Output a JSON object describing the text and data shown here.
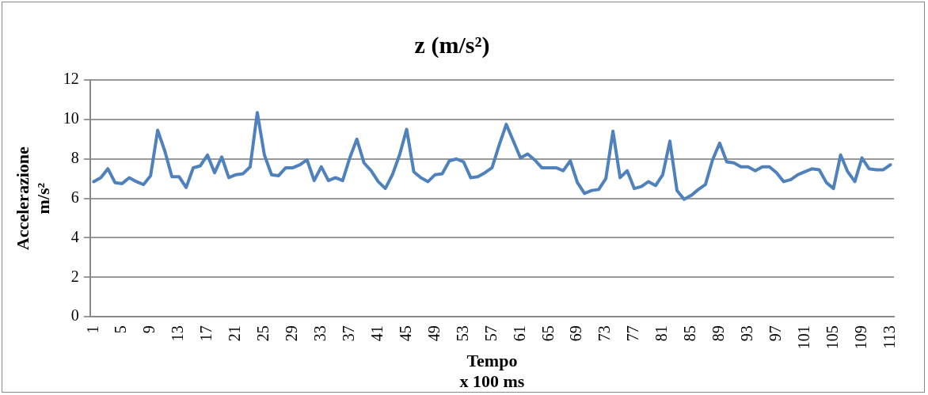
{
  "chart_data": {
    "type": "line",
    "title": "z (m/s²)",
    "xlabel": "Tempo\nx 100 ms",
    "ylabel": "Accelerazione\nm/s²",
    "categories": [
      "1",
      null,
      null,
      null,
      "5",
      null,
      null,
      null,
      "9",
      null,
      null,
      null,
      "13",
      null,
      null,
      null,
      "17",
      null,
      null,
      null,
      "21",
      null,
      null,
      null,
      "25",
      null,
      null,
      null,
      "29",
      null,
      null,
      null,
      "33",
      null,
      null,
      null,
      "37",
      null,
      null,
      null,
      "41",
      null,
      null,
      null,
      "45",
      null,
      null,
      null,
      "49",
      null,
      null,
      null,
      "53",
      null,
      null,
      null,
      "57",
      null,
      null,
      null,
      "61",
      null,
      null,
      null,
      "65",
      null,
      null,
      null,
      "69",
      null,
      null,
      null,
      "73",
      null,
      null,
      null,
      "77",
      null,
      null,
      null,
      "81",
      null,
      null,
      null,
      "85",
      null,
      null,
      null,
      "89",
      null,
      null,
      null,
      "93",
      null,
      null,
      null,
      "97",
      null,
      null,
      null,
      "101",
      null,
      null,
      null,
      "105",
      null,
      null,
      null,
      "109",
      null,
      null,
      null,
      "113"
    ],
    "series": [
      {
        "color": "#4f81bd",
        "values": [
          6.85,
          7.05,
          7.5,
          6.8,
          6.75,
          7.05,
          6.85,
          6.7,
          7.15,
          9.45,
          8.4,
          7.1,
          7.1,
          6.55,
          7.55,
          7.65,
          8.2,
          7.3,
          8.1,
          7.05,
          7.2,
          7.25,
          7.6,
          10.35,
          8.2,
          7.2,
          7.15,
          7.55,
          7.55,
          7.7,
          7.95,
          6.9,
          7.6,
          6.9,
          7.05,
          6.9,
          8.05,
          9.0,
          7.8,
          7.4,
          6.85,
          6.5,
          7.2,
          8.2,
          9.5,
          7.35,
          7.05,
          6.85,
          7.2,
          7.25,
          7.9,
          8.0,
          7.85,
          7.05,
          7.1,
          7.3,
          7.55,
          8.7,
          9.75,
          8.9,
          8.05,
          8.25,
          7.95,
          7.55,
          7.55,
          7.55,
          7.4,
          7.9,
          6.8,
          6.25,
          6.4,
          6.45,
          7.0,
          9.4,
          7.05,
          7.4,
          6.5,
          6.6,
          6.85,
          6.65,
          7.2,
          8.9,
          6.4,
          5.95,
          6.15,
          6.45,
          6.7,
          7.95,
          8.8,
          7.85,
          7.8,
          7.6,
          7.6,
          7.4,
          7.6,
          7.6,
          7.3,
          6.85,
          6.95,
          7.2,
          7.35,
          7.5,
          7.45,
          6.8,
          6.5,
          8.2,
          7.35,
          6.85,
          8.05,
          7.5,
          7.45,
          7.45,
          7.7
        ]
      }
    ],
    "ylim": [
      0,
      12
    ],
    "yticks": [
      0,
      2,
      4,
      6,
      8,
      10,
      12
    ],
    "grid": "y",
    "legend": false,
    "marker": "none",
    "line_style": "solid"
  }
}
